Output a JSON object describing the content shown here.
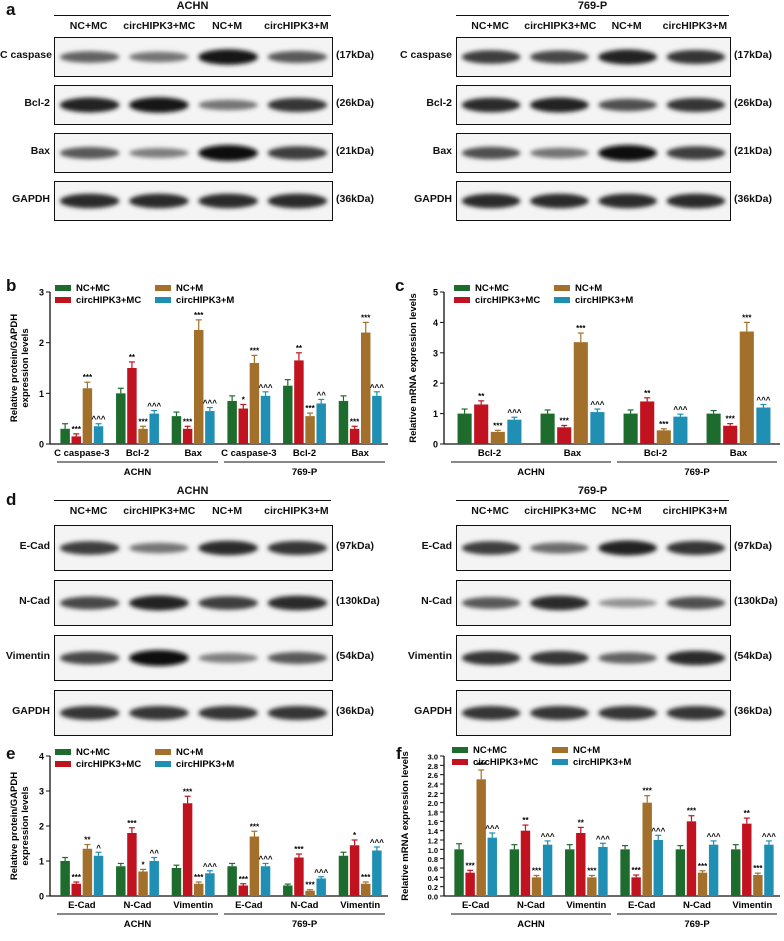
{
  "panels": {
    "a": "a",
    "b": "b",
    "c": "c",
    "d": "d",
    "e": "e",
    "f": "f"
  },
  "blots": {
    "a_left": {
      "title": "ACHN",
      "lanes": [
        "NC+MC",
        "circHIPK3+MC",
        "NC+M",
        "circHIPK3+M"
      ],
      "rows": [
        {
          "label": "C caspase",
          "kda": "(17kDa)",
          "band": [
            0.55,
            0.45,
            0.95,
            0.6
          ]
        },
        {
          "label": "Bcl-2",
          "kda": "(26kDa)",
          "band": [
            0.9,
            0.95,
            0.45,
            0.8
          ]
        },
        {
          "label": "Bax",
          "kda": "(21kDa)",
          "band": [
            0.6,
            0.4,
            1.0,
            0.75
          ]
        },
        {
          "label": "GAPDH",
          "kda": "(36kDa)",
          "band": [
            0.85,
            0.85,
            0.85,
            0.85
          ]
        }
      ]
    },
    "a_right": {
      "title": "769-P",
      "lanes": [
        "NC+MC",
        "circHIPK3+MC",
        "NC+M",
        "circHIPK3+M"
      ],
      "rows": [
        {
          "label": "C caspase",
          "kda": "(17kDa)",
          "band": [
            0.75,
            0.7,
            0.9,
            0.8
          ]
        },
        {
          "label": "Bcl-2",
          "kda": "(26kDa)",
          "band": [
            0.85,
            0.9,
            0.65,
            0.8
          ]
        },
        {
          "label": "Bax",
          "kda": "(21kDa)",
          "band": [
            0.65,
            0.45,
            1.0,
            0.75
          ]
        },
        {
          "label": "GAPDH",
          "kda": "(36kDa)",
          "band": [
            0.85,
            0.85,
            0.85,
            0.85
          ]
        }
      ]
    },
    "d_left": {
      "title": "ACHN",
      "lanes": [
        "NC+MC",
        "circHIPK3+MC",
        "NC+M",
        "circHIPK3+M"
      ],
      "rows": [
        {
          "label": "E-Cad",
          "kda": "(97kDa)",
          "band": [
            0.75,
            0.45,
            0.85,
            0.8
          ]
        },
        {
          "label": "N-Cad",
          "kda": "(130kDa)",
          "band": [
            0.7,
            0.9,
            0.75,
            0.85
          ]
        },
        {
          "label": "Vimentin",
          "kda": "(54kDa)",
          "band": [
            0.7,
            1.0,
            0.4,
            0.6
          ]
        },
        {
          "label": "GAPDH",
          "kda": "(36kDa)",
          "band": [
            0.8,
            0.8,
            0.8,
            0.8
          ]
        }
      ]
    },
    "d_right": {
      "title": "769-P",
      "lanes": [
        "NC+MC",
        "circHIPK3+MC",
        "NC+M",
        "circHIPK3+M"
      ],
      "rows": [
        {
          "label": "E-Cad",
          "kda": "(97kDa)",
          "band": [
            0.75,
            0.5,
            0.9,
            0.8
          ]
        },
        {
          "label": "N-Cad",
          "kda": "(130kDa)",
          "band": [
            0.6,
            0.85,
            0.3,
            0.65
          ]
        },
        {
          "label": "Vimentin",
          "kda": "(54kDa)",
          "band": [
            0.8,
            0.8,
            0.55,
            0.85
          ]
        },
        {
          "label": "GAPDH",
          "kda": "(36kDa)",
          "band": [
            0.8,
            0.8,
            0.8,
            0.8
          ]
        }
      ]
    }
  },
  "colors": {
    "nc_mc": "#1e6b2e",
    "circ_mc": "#c1121f",
    "nc_m": "#a2702a",
    "circ_m": "#1f8fb3"
  },
  "chart_data": [
    {
      "id": "b",
      "type": "bar",
      "ylabel": "Relative protein/GAPDH expression levels",
      "ylim": [
        0,
        3
      ],
      "yticks": [
        0,
        1,
        2,
        3
      ],
      "legend": [
        "NC+MC",
        "circHIPK3+MC",
        "NC+M",
        "circHIPK3+M"
      ],
      "categories": [
        "C caspase-3",
        "Bcl-2",
        "Bax",
        "C caspase-3",
        "Bcl-2",
        "Bax"
      ],
      "groups": [
        "ACHN",
        "769-P"
      ],
      "series": [
        {
          "name": "NC+MC",
          "values": [
            0.3,
            1.0,
            0.55,
            0.85,
            1.15,
            0.85
          ],
          "errors": [
            0.1,
            0.1,
            0.08,
            0.1,
            0.12,
            0.1
          ],
          "marks": [
            "",
            "",
            "",
            "",
            "",
            ""
          ]
        },
        {
          "name": "circHIPK3+MC",
          "values": [
            0.15,
            1.5,
            0.3,
            0.7,
            1.65,
            0.3
          ],
          "errors": [
            0.05,
            0.12,
            0.05,
            0.08,
            0.15,
            0.05
          ],
          "marks": [
            "***",
            "**",
            "***",
            "*",
            "**",
            "***"
          ]
        },
        {
          "name": "NC+M",
          "values": [
            1.1,
            0.3,
            2.25,
            1.6,
            0.55,
            2.2
          ],
          "errors": [
            0.12,
            0.05,
            0.2,
            0.15,
            0.06,
            0.2
          ],
          "marks": [
            "***",
            "***",
            "***",
            "***",
            "***",
            "***"
          ]
        },
        {
          "name": "circHIPK3+M",
          "values": [
            0.35,
            0.6,
            0.65,
            0.95,
            0.8,
            0.95
          ],
          "errors": [
            0.05,
            0.06,
            0.07,
            0.08,
            0.08,
            0.08
          ],
          "marks": [
            "^^^",
            "^^^",
            "^^^",
            "^^^",
            "^^",
            "^^^"
          ]
        }
      ]
    },
    {
      "id": "c",
      "type": "bar",
      "ylabel": "Relative mRNA expression levels",
      "ylim": [
        0,
        5
      ],
      "yticks": [
        0,
        1,
        2,
        3,
        4,
        5
      ],
      "legend": [
        "NC+MC",
        "circHIPK3+MC",
        "NC+M",
        "circHIPK3+M"
      ],
      "categories": [
        "Bcl-2",
        "Bax",
        "Bcl-2",
        "Bax"
      ],
      "groups": [
        "ACHN",
        "769-P"
      ],
      "series": [
        {
          "name": "NC+MC",
          "values": [
            1.0,
            1.0,
            1.0,
            1.0
          ],
          "errors": [
            0.15,
            0.12,
            0.12,
            0.1
          ],
          "marks": [
            "",
            "",
            "",
            ""
          ]
        },
        {
          "name": "circHIPK3+MC",
          "values": [
            1.3,
            0.55,
            1.4,
            0.6
          ],
          "errors": [
            0.12,
            0.06,
            0.12,
            0.07
          ],
          "marks": [
            "**",
            "***",
            "**",
            "***"
          ]
        },
        {
          "name": "NC+M",
          "values": [
            0.4,
            3.35,
            0.45,
            3.7
          ],
          "errors": [
            0.05,
            0.3,
            0.05,
            0.3
          ],
          "marks": [
            "***",
            "***",
            "***",
            "***"
          ]
        },
        {
          "name": "circHIPK3+M",
          "values": [
            0.8,
            1.05,
            0.9,
            1.2
          ],
          "errors": [
            0.08,
            0.1,
            0.08,
            0.1
          ],
          "marks": [
            "^^^",
            "^^^",
            "^^^",
            "^^^"
          ]
        }
      ]
    },
    {
      "id": "e",
      "type": "bar",
      "ylabel": "Relative protein/GAPDH expression levels",
      "ylim": [
        0,
        4
      ],
      "yticks": [
        0,
        1,
        2,
        3,
        4
      ],
      "legend": [
        "NC+MC",
        "circHIPK3+MC",
        "NC+M",
        "circHIPK3+M"
      ],
      "categories": [
        "E-Cad",
        "N-Cad",
        "Vimentin",
        "E-Cad",
        "N-Cad",
        "Vimentin"
      ],
      "groups": [
        "ACHN",
        "769-P"
      ],
      "series": [
        {
          "name": "NC+MC",
          "values": [
            1.0,
            0.85,
            0.8,
            0.85,
            0.3,
            1.15
          ],
          "errors": [
            0.1,
            0.08,
            0.08,
            0.08,
            0.04,
            0.1
          ],
          "marks": [
            "",
            "",
            "",
            "",
            "",
            ""
          ]
        },
        {
          "name": "circHIPK3+MC",
          "values": [
            0.35,
            1.8,
            2.65,
            0.3,
            1.1,
            1.45
          ],
          "errors": [
            0.05,
            0.15,
            0.2,
            0.05,
            0.1,
            0.15
          ],
          "marks": [
            "***",
            "***",
            "***",
            "***",
            "***",
            "*"
          ]
        },
        {
          "name": "NC+M",
          "values": [
            1.35,
            0.7,
            0.35,
            1.7,
            0.15,
            0.35
          ],
          "errors": [
            0.12,
            0.06,
            0.05,
            0.15,
            0.03,
            0.05
          ],
          "marks": [
            "**",
            "*",
            "***",
            "***",
            "***",
            "***"
          ]
        },
        {
          "name": "circHIPK3+M",
          "values": [
            1.15,
            1.0,
            0.65,
            0.85,
            0.5,
            1.3
          ],
          "errors": [
            0.1,
            0.1,
            0.07,
            0.08,
            0.05,
            0.1
          ],
          "marks": [
            "^",
            "^^",
            "^^^",
            "^^^",
            "^^^",
            "^^^"
          ]
        }
      ]
    },
    {
      "id": "f",
      "type": "bar",
      "ylabel": "Relative mRNA expression levels",
      "ylim": [
        0,
        3
      ],
      "yticks": [
        0.0,
        0.2,
        0.4,
        0.6,
        0.8,
        1.0,
        1.2,
        1.4,
        1.6,
        1.8,
        2.0,
        2.2,
        2.4,
        2.6,
        2.8,
        3.0
      ],
      "legend": [
        "NC+MC",
        "circHIPK3+MC",
        "NC+M",
        "circHIPK3+M"
      ],
      "categories": [
        "E-Cad",
        "N-Cad",
        "Vimentin",
        "E-Cad",
        "N-Cad",
        "Vimentin"
      ],
      "groups": [
        "ACHN",
        "769-P"
      ],
      "series": [
        {
          "name": "NC+MC",
          "values": [
            1.0,
            1.0,
            1.0,
            1.0,
            1.0,
            1.0
          ],
          "errors": [
            0.12,
            0.1,
            0.1,
            0.08,
            0.08,
            0.1
          ],
          "marks": [
            "",
            "",
            "",
            "",
            "",
            ""
          ]
        },
        {
          "name": "circHIPK3+MC",
          "values": [
            0.5,
            1.4,
            1.35,
            0.4,
            1.6,
            1.55
          ],
          "errors": [
            0.05,
            0.12,
            0.12,
            0.05,
            0.12,
            0.12
          ],
          "marks": [
            "***",
            "**",
            "**",
            "***",
            "***",
            "**"
          ]
        },
        {
          "name": "NC+M",
          "values": [
            2.5,
            0.4,
            0.4,
            2.0,
            0.5,
            0.45
          ],
          "errors": [
            0.2,
            0.04,
            0.04,
            0.15,
            0.04,
            0.04
          ],
          "marks": [
            "***",
            "***",
            "***",
            "***",
            "***",
            "***"
          ]
        },
        {
          "name": "circHIPK3+M",
          "values": [
            1.25,
            1.1,
            1.05,
            1.2,
            1.1,
            1.1
          ],
          "errors": [
            0.1,
            0.08,
            0.08,
            0.1,
            0.08,
            0.08
          ],
          "marks": [
            "^^^",
            "^^^",
            "^^^",
            "^^^",
            "^^^",
            "^^^"
          ]
        }
      ]
    }
  ]
}
